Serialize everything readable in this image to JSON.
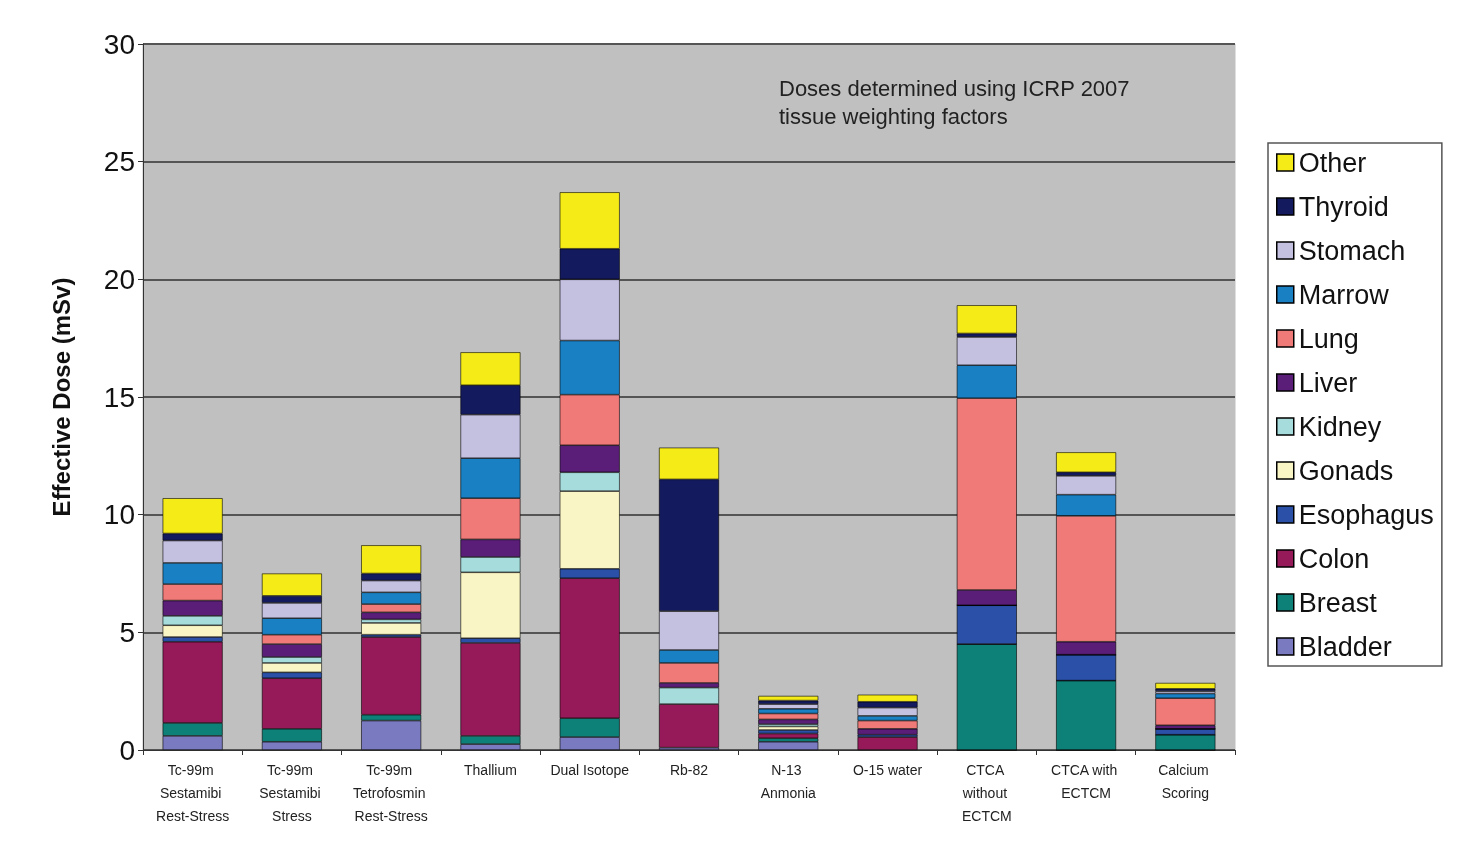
{
  "chart_data": {
    "type": "bar",
    "stacked": true,
    "ylabel": "Effective Dose (mSv)",
    "annotations": [
      "Doses determined using ICRP 2007 tissue weighting factors"
    ],
    "categories": [
      "Tc-99m Sestamibi Rest-Stress",
      "Tc-99m Sestamibi Stress",
      "Tc-99m Tetrofosmin Rest-Stress",
      "Thallium",
      "Dual Isotope",
      "Rb-82",
      "N-13 Anmonia",
      "O-15 water",
      "CTCA without ECTCM",
      "CTCA with ECTCM",
      "Calcium Scoring"
    ],
    "ylim": [
      0,
      30
    ],
    "yticks": [
      0,
      5,
      10,
      15,
      20,
      25,
      30
    ],
    "grid": "y",
    "legend": "right",
    "series": [
      {
        "name": "Bladder",
        "color": "#7a7ac0",
        "values": [
          0.6,
          0.35,
          1.25,
          0.25,
          0.55,
          0.1,
          0.35,
          null,
          0,
          0,
          0
        ]
      },
      {
        "name": "Breast",
        "color": "#0d8078",
        "values": [
          0.55,
          0.55,
          0.25,
          0.35,
          0.8,
          null,
          0.15,
          null,
          4.5,
          2.95,
          0.65
        ]
      },
      {
        "name": "Colon",
        "color": "#96195a",
        "values": [
          3.45,
          2.15,
          3.3,
          3.95,
          5.95,
          1.85,
          0.2,
          0.55,
          0,
          0,
          0
        ]
      },
      {
        "name": "Esophagus",
        "color": "#2a50a8",
        "values": [
          0.2,
          0.25,
          0.1,
          0.2,
          0.4,
          null,
          0.15,
          0.1,
          1.65,
          1.1,
          0.25
        ]
      },
      {
        "name": "Gonads",
        "color": "#faf5c4",
        "values": [
          0.5,
          0.4,
          0.5,
          2.8,
          3.3,
          null,
          0.15,
          null,
          0,
          0,
          0
        ]
      },
      {
        "name": "Kidney",
        "color": "#a6dcdc",
        "values": [
          0.4,
          0.25,
          0.15,
          0.65,
          0.8,
          0.7,
          0.1,
          null,
          0,
          0,
          0
        ]
      },
      {
        "name": "Liver",
        "color": "#5a1e78",
        "values": [
          0.65,
          0.55,
          0.3,
          0.75,
          1.15,
          0.2,
          0.2,
          0.25,
          0.65,
          0.55,
          0.15
        ]
      },
      {
        "name": "Lung",
        "color": "#f07a78",
        "values": [
          0.7,
          0.4,
          0.35,
          1.75,
          2.15,
          0.85,
          0.25,
          0.35,
          8.15,
          5.35,
          1.15
        ]
      },
      {
        "name": "Marrow",
        "color": "#1a80c4",
        "values": [
          0.9,
          0.7,
          0.5,
          1.7,
          2.3,
          0.55,
          0.2,
          0.2,
          1.4,
          0.9,
          0.2
        ]
      },
      {
        "name": "Stomach",
        "color": "#c4c0e0",
        "values": [
          0.95,
          0.65,
          0.5,
          1.85,
          2.6,
          1.65,
          0.2,
          0.35,
          1.2,
          0.8,
          0.1
        ]
      },
      {
        "name": "Thyroid",
        "color": "#141a5e",
        "values": [
          0.3,
          0.3,
          0.3,
          1.25,
          1.3,
          5.6,
          0.15,
          0.25,
          0.15,
          0.15,
          0.1
        ]
      },
      {
        "name": "Other",
        "color": "#f5eb16",
        "values": [
          1.5,
          0.95,
          1.2,
          1.4,
          2.4,
          1.35,
          0.2,
          0.3,
          1.2,
          0.85,
          0.25
        ]
      }
    ]
  }
}
